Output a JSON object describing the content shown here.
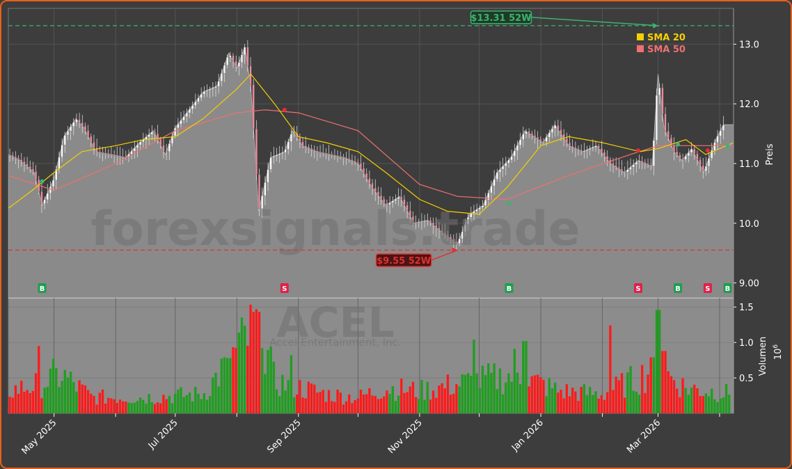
{
  "chart_data": {
    "type": "candlestick",
    "ticker": "ACEL",
    "company": "Accel Entertainment, Inc.",
    "watermark": "forexsignals.trade",
    "price_axis": {
      "label": "Preis",
      "ylim": [
        8.75,
        13.6
      ],
      "ticks": [
        {
          "value": 9,
          "label": "9.00"
        },
        {
          "value": 10,
          "label": "10.0"
        },
        {
          "value": 11,
          "label": "11.0"
        },
        {
          "value": 12,
          "label": "12.0"
        },
        {
          "value": 13,
          "label": "13.0"
        }
      ]
    },
    "volume_axis": {
      "label": "Volumen",
      "unit_label": "10",
      "unit_exp": "6",
      "ylim": [
        0,
        1.62
      ],
      "ticks": [
        {
          "value": 0.5,
          "label": "0.5"
        },
        {
          "value": 1.0,
          "label": "1.0"
        },
        {
          "value": 1.5,
          "label": "1.5"
        }
      ]
    },
    "date_range": [
      "2025-04-08",
      "2026-04-08"
    ],
    "x_ticks": [
      {
        "date": "2025-05-01",
        "label": "May 2025"
      },
      {
        "date": "2025-07-01",
        "label": "Jul 2025"
      },
      {
        "date": "2025-09-01",
        "label": "Sep 2025"
      },
      {
        "date": "2025-11-01",
        "label": "Nov 2025"
      },
      {
        "date": "2026-01-01",
        "label": "Jan 2026"
      },
      {
        "date": "2026-03-01",
        "label": "Mar 2026"
      }
    ],
    "extra_gridlines": [
      "2025-06-01",
      "2025-08-01",
      "2025-10-01",
      "2025-12-01",
      "2026-02-01",
      "2026-04-01"
    ],
    "legend": [
      {
        "name": "SMA 20",
        "color": "#f5d000"
      },
      {
        "name": "SMA 50",
        "color": "#f07070"
      }
    ],
    "levels": [
      {
        "value": 13.31,
        "label": "$13.31 52W",
        "color": "#3cb371",
        "point_date": "2026-03-01",
        "box_date": "2025-12-12",
        "box_value": 13.45
      },
      {
        "value": 9.55,
        "label": "$9.55 52W",
        "color": "#e03030",
        "point_date": "2025-11-20",
        "box_date": "2025-10-24",
        "box_value": 9.38
      }
    ],
    "price_series": [
      [
        "2025-04-08",
        11.15
      ],
      [
        "2025-04-14",
        11.05
      ],
      [
        "2025-04-21",
        10.85
      ],
      [
        "2025-04-25",
        10.3
      ],
      [
        "2025-05-01",
        10.75
      ],
      [
        "2025-05-06",
        11.45
      ],
      [
        "2025-05-12",
        11.75
      ],
      [
        "2025-05-16",
        11.6
      ],
      [
        "2025-05-22",
        11.2
      ],
      [
        "2025-05-30",
        11.15
      ],
      [
        "2025-06-06",
        11.1
      ],
      [
        "2025-06-13",
        11.35
      ],
      [
        "2025-06-20",
        11.55
      ],
      [
        "2025-06-26",
        11.15
      ],
      [
        "2025-07-01",
        11.6
      ],
      [
        "2025-07-08",
        11.9
      ],
      [
        "2025-07-15",
        12.2
      ],
      [
        "2025-07-22",
        12.3
      ],
      [
        "2025-07-28",
        12.85
      ],
      [
        "2025-08-01",
        12.6
      ],
      [
        "2025-08-05",
        12.95
      ],
      [
        "2025-08-08",
        12.3
      ],
      [
        "2025-08-12",
        10.2
      ],
      [
        "2025-08-18",
        11.1
      ],
      [
        "2025-08-25",
        11.2
      ],
      [
        "2025-08-29",
        11.55
      ],
      [
        "2025-09-03",
        11.3
      ],
      [
        "2025-09-10",
        11.2
      ],
      [
        "2025-09-17",
        11.15
      ],
      [
        "2025-09-24",
        11.1
      ],
      [
        "2025-10-01",
        11.0
      ],
      [
        "2025-10-08",
        10.6
      ],
      [
        "2025-10-15",
        10.3
      ],
      [
        "2025-10-22",
        10.45
      ],
      [
        "2025-10-29",
        10.0
      ],
      [
        "2025-11-05",
        10.05
      ],
      [
        "2025-11-12",
        9.85
      ],
      [
        "2025-11-20",
        9.65
      ],
      [
        "2025-11-26",
        10.15
      ],
      [
        "2025-12-03",
        10.3
      ],
      [
        "2025-12-10",
        10.85
      ],
      [
        "2025-12-17",
        11.1
      ],
      [
        "2025-12-24",
        11.55
      ],
      [
        "2026-01-02",
        11.35
      ],
      [
        "2026-01-08",
        11.65
      ],
      [
        "2026-01-15",
        11.3
      ],
      [
        "2026-01-22",
        11.2
      ],
      [
        "2026-01-29",
        11.3
      ],
      [
        "2026-02-05",
        11.0
      ],
      [
        "2026-02-12",
        10.85
      ],
      [
        "2026-02-19",
        11.05
      ],
      [
        "2026-02-26",
        10.95
      ],
      [
        "2026-03-01",
        12.5
      ],
      [
        "2026-03-04",
        11.6
      ],
      [
        "2026-03-09",
        11.2
      ],
      [
        "2026-03-13",
        11.05
      ],
      [
        "2026-03-18",
        11.25
      ],
      [
        "2026-03-24",
        10.85
      ],
      [
        "2026-03-30",
        11.4
      ],
      [
        "2026-04-03",
        11.65
      ],
      [
        "2026-04-08",
        11.65
      ]
    ],
    "sma20": [
      [
        "2025-04-08",
        10.25
      ],
      [
        "2025-04-20",
        10.55
      ],
      [
        "2025-05-01",
        10.85
      ],
      [
        "2025-05-15",
        11.2
      ],
      [
        "2025-06-01",
        11.3
      ],
      [
        "2025-06-15",
        11.4
      ],
      [
        "2025-07-01",
        11.45
      ],
      [
        "2025-07-15",
        11.75
      ],
      [
        "2025-08-01",
        12.25
      ],
      [
        "2025-08-08",
        12.5
      ],
      [
        "2025-08-20",
        12.0
      ],
      [
        "2025-09-01",
        11.45
      ],
      [
        "2025-09-15",
        11.35
      ],
      [
        "2025-10-01",
        11.2
      ],
      [
        "2025-10-15",
        10.85
      ],
      [
        "2025-11-01",
        10.4
      ],
      [
        "2025-11-15",
        10.2
      ],
      [
        "2025-12-01",
        10.15
      ],
      [
        "2025-12-15",
        10.6
      ],
      [
        "2026-01-01",
        11.3
      ],
      [
        "2026-01-15",
        11.45
      ],
      [
        "2026-02-01",
        11.35
      ],
      [
        "2026-02-20",
        11.2
      ],
      [
        "2026-03-01",
        11.25
      ],
      [
        "2026-03-15",
        11.4
      ],
      [
        "2026-03-25",
        11.15
      ],
      [
        "2026-04-08",
        11.35
      ]
    ],
    "sma50": [
      [
        "2025-04-08",
        10.8
      ],
      [
        "2025-05-01",
        10.55
      ],
      [
        "2025-06-01",
        11.0
      ],
      [
        "2025-07-01",
        11.55
      ],
      [
        "2025-08-01",
        11.85
      ],
      [
        "2025-08-15",
        11.9
      ],
      [
        "2025-09-01",
        11.85
      ],
      [
        "2025-10-01",
        11.55
      ],
      [
        "2025-11-01",
        10.65
      ],
      [
        "2025-11-20",
        10.45
      ],
      [
        "2025-12-15",
        10.4
      ],
      [
        "2026-01-15",
        10.8
      ],
      [
        "2026-02-15",
        11.15
      ],
      [
        "2026-03-01",
        11.3
      ],
      [
        "2026-04-08",
        11.3
      ]
    ],
    "crossovers": [
      [
        "2025-04-25",
        10.7,
        "#3cb371"
      ],
      [
        "2025-08-25",
        11.9,
        "#e03030"
      ],
      [
        "2025-12-16",
        10.33,
        "#3cb371"
      ],
      [
        "2026-02-19",
        11.22,
        "#e03030"
      ],
      [
        "2026-03-11",
        11.32,
        "#3cb371"
      ],
      [
        "2026-03-26",
        11.22,
        "#e03030"
      ],
      [
        "2026-04-05",
        11.3,
        "#3cb371"
      ]
    ],
    "signals": [
      {
        "date": "2025-04-25",
        "label": "B"
      },
      {
        "date": "2025-08-25",
        "label": "S"
      },
      {
        "date": "2025-12-16",
        "label": "B"
      },
      {
        "date": "2026-02-19",
        "label": "S"
      },
      {
        "date": "2026-03-11",
        "label": "B"
      },
      {
        "date": "2026-03-26",
        "label": "S"
      },
      {
        "date": "2026-04-05",
        "label": "B"
      }
    ],
    "volume_keypoints": [
      [
        "2025-04-08",
        0.35
      ],
      [
        "2025-04-23",
        0.45
      ],
      [
        "2025-05-05",
        0.6
      ],
      [
        "2025-05-20",
        0.25
      ],
      [
        "2025-06-15",
        0.25
      ],
      [
        "2025-07-15",
        0.3
      ],
      [
        "2025-08-12",
        1.4
      ],
      [
        "2025-08-20",
        0.5
      ],
      [
        "2025-09-15",
        0.3
      ],
      [
        "2025-10-01",
        0.25
      ],
      [
        "2025-10-15",
        0.4
      ],
      [
        "2025-11-01",
        0.35
      ],
      [
        "2025-11-28",
        0.5
      ],
      [
        "2025-12-20",
        0.6
      ],
      [
        "2026-01-10",
        0.35
      ],
      [
        "2026-02-01",
        0.3
      ],
      [
        "2026-03-01",
        0.7
      ],
      [
        "2026-03-15",
        0.4
      ],
      [
        "2026-04-08",
        0.3
      ]
    ],
    "volume_spikes": [
      [
        "2025-04-23",
        0.95
      ],
      [
        "2025-05-01",
        0.77
      ],
      [
        "2025-07-28",
        0.78
      ],
      [
        "2025-08-12",
        1.43
      ],
      [
        "2025-08-14",
        0.92
      ],
      [
        "2025-08-28",
        0.82
      ],
      [
        "2025-11-28",
        1.04
      ],
      [
        "2025-12-19",
        0.91
      ],
      [
        "2025-12-24",
        1.02
      ],
      [
        "2026-02-05",
        1.24
      ],
      [
        "2026-02-26",
        0.79
      ],
      [
        "2026-03-01",
        1.46
      ],
      [
        "2026-03-04",
        0.88
      ]
    ],
    "colors": {
      "up": "#1f9e1f",
      "down": "#ff1a1a",
      "area": "#8a8a8a",
      "candle_up": "#ffffff",
      "candle_down": "#f08a9a",
      "grid": "#5a5a5a",
      "background": "#3d3d3d",
      "frame": "#e8601c"
    }
  }
}
